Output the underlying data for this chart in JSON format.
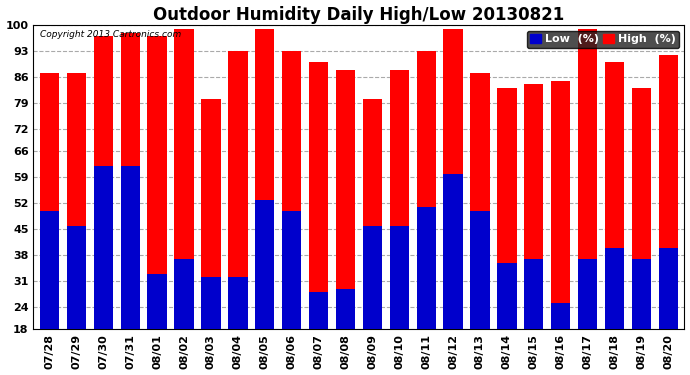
{
  "title": "Outdoor Humidity Daily High/Low 20130821",
  "copyright": "Copyright 2013 Cartronics.com",
  "dates": [
    "07/28",
    "07/29",
    "07/30",
    "07/31",
    "08/01",
    "08/02",
    "08/03",
    "08/04",
    "08/05",
    "08/06",
    "08/07",
    "08/08",
    "08/09",
    "08/10",
    "08/11",
    "08/12",
    "08/13",
    "08/14",
    "08/15",
    "08/16",
    "08/17",
    "08/18",
    "08/19",
    "08/20"
  ],
  "high_values": [
    87,
    87,
    97,
    98,
    97,
    99,
    80,
    93,
    99,
    93,
    90,
    88,
    80,
    88,
    93,
    99,
    87,
    83,
    84,
    85,
    99,
    90,
    83,
    92
  ],
  "low_values": [
    50,
    46,
    62,
    62,
    33,
    37,
    32,
    32,
    53,
    50,
    28,
    29,
    46,
    46,
    51,
    60,
    50,
    36,
    37,
    25,
    37,
    40,
    37,
    40
  ],
  "high_color": "#ff0000",
  "low_color": "#0000cc",
  "background_color": "#ffffff",
  "grid_color": "#aaaaaa",
  "ylim_min": 18,
  "ylim_max": 100,
  "yticks": [
    18,
    24,
    31,
    38,
    45,
    52,
    59,
    66,
    72,
    79,
    86,
    93,
    100
  ],
  "bar_width": 0.72,
  "title_fontsize": 12,
  "tick_fontsize": 8,
  "legend_fontsize": 8
}
